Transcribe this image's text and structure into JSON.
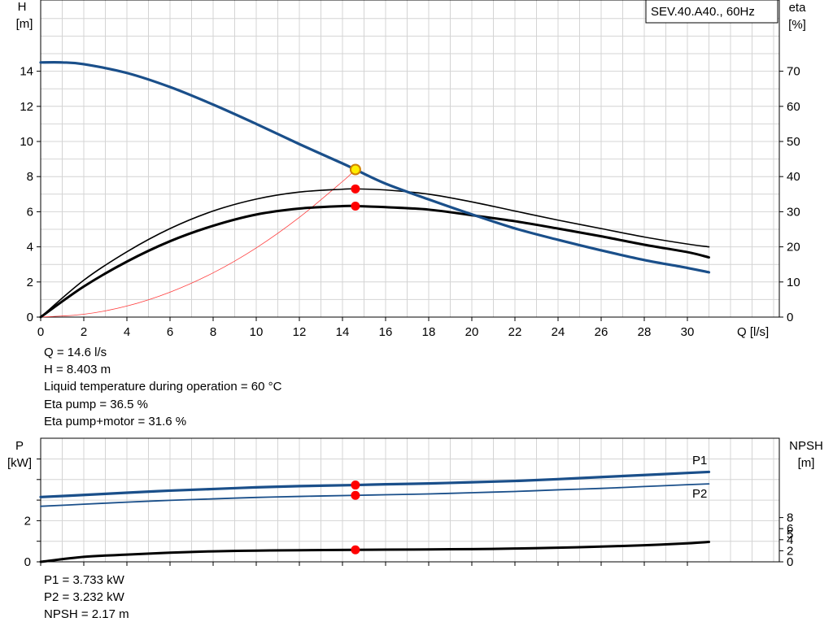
{
  "colors": {
    "head_curve": "#1a4f8a",
    "power_curve": "#1a4f8a",
    "eta_curve": "#000000",
    "system_curve": "#ff3b3b",
    "duty_marker": "#ff0000",
    "duty_highlight_fill": "#ffee00",
    "duty_highlight_stroke": "#d08000",
    "grid": "#d4d4d4"
  },
  "legend_box": "SEV.40.A40., 60Hz",
  "chart_data": [
    {
      "type": "line",
      "name": "performance",
      "xlabel": "Q [l/s]",
      "ylabel": [
        "H",
        "[m]"
      ],
      "y2label": [
        "eta",
        "[%]"
      ],
      "xlim": [
        0,
        34
      ],
      "ylim": [
        0,
        17
      ],
      "y2lim": [
        0,
        85
      ],
      "xticks": [
        0,
        2,
        4,
        6,
        8,
        10,
        12,
        14,
        16,
        18,
        20,
        22,
        24,
        26,
        28,
        30
      ],
      "yticks": [
        0,
        2,
        4,
        6,
        8,
        10,
        12,
        14
      ],
      "y2ticks": [
        0,
        10,
        20,
        30,
        40,
        50,
        60,
        70
      ],
      "grid": true,
      "series": [
        {
          "role": "H",
          "axis": "y",
          "x": [
            0,
            1,
            2,
            4,
            6,
            8,
            10,
            12,
            14,
            14.6,
            16,
            18,
            20,
            22,
            24,
            26,
            28,
            30,
            31
          ],
          "y": [
            14.5,
            14.5,
            14.4,
            13.9,
            13.1,
            12.1,
            11.0,
            9.85,
            8.75,
            8.403,
            7.6,
            6.7,
            5.85,
            5.05,
            4.4,
            3.8,
            3.25,
            2.8,
            2.55
          ]
        },
        {
          "role": "eta_pump",
          "axis": "y2",
          "x": [
            0,
            2,
            4,
            6,
            8,
            10,
            12,
            14,
            14.6,
            16,
            18,
            20,
            22,
            24,
            26,
            28,
            30,
            31
          ],
          "y": [
            0,
            10.5,
            18.6,
            25.2,
            30.2,
            33.6,
            35.6,
            36.4,
            36.5,
            36.2,
            35.0,
            32.8,
            30.2,
            27.6,
            25.2,
            22.8,
            20.8,
            20.0
          ]
        },
        {
          "role": "eta_pump_motor",
          "axis": "y2",
          "x": [
            0,
            2,
            4,
            6,
            8,
            10,
            12,
            14,
            14.6,
            16,
            18,
            20,
            22,
            24,
            26,
            28,
            30,
            31
          ],
          "y": [
            0,
            8.7,
            15.8,
            21.6,
            26.0,
            29.2,
            30.9,
            31.6,
            31.6,
            31.3,
            30.6,
            29.0,
            27.3,
            25.2,
            23.0,
            20.6,
            18.5,
            17.0
          ]
        },
        {
          "role": "system_curve",
          "axis": "y",
          "x": [
            0,
            2,
            4,
            6,
            8,
            10,
            12,
            14,
            14.6
          ],
          "y": [
            0,
            0.16,
            0.63,
            1.42,
            2.52,
            3.94,
            5.68,
            7.72,
            8.403
          ]
        }
      ],
      "duty_points": [
        {
          "x": 14.6,
          "y": 8.403,
          "axis": "y",
          "highlight": true
        },
        {
          "x": 14.6,
          "y": 36.5,
          "axis": "y2"
        },
        {
          "x": 14.6,
          "y": 31.6,
          "axis": "y2"
        }
      ]
    },
    {
      "type": "line",
      "name": "power",
      "ylabel": [
        "P",
        "[kW]"
      ],
      "y2label": [
        "NPSH",
        "[m]"
      ],
      "xlim": [
        0,
        34
      ],
      "ylim": [
        0,
        5.5
      ],
      "y2lim": [
        0,
        20.5
      ],
      "yticks": [
        0,
        2
      ],
      "y2ticks": [
        0,
        2,
        4,
        6,
        8
      ],
      "grid": true,
      "series": [
        {
          "name": "P1",
          "axis": "y",
          "x": [
            0,
            2,
            4,
            6,
            8,
            10,
            12,
            14.6,
            16,
            18,
            20,
            22,
            24,
            26,
            28,
            30,
            31
          ],
          "y": [
            3.15,
            3.25,
            3.36,
            3.46,
            3.54,
            3.62,
            3.68,
            3.733,
            3.77,
            3.81,
            3.87,
            3.93,
            4.02,
            4.12,
            4.22,
            4.32,
            4.37
          ]
        },
        {
          "name": "P2",
          "axis": "y",
          "x": [
            0,
            2,
            4,
            6,
            8,
            10,
            12,
            14.6,
            16,
            18,
            20,
            22,
            24,
            26,
            28,
            30,
            31
          ],
          "y": [
            2.7,
            2.8,
            2.9,
            2.99,
            3.06,
            3.13,
            3.18,
            3.232,
            3.26,
            3.3,
            3.36,
            3.42,
            3.5,
            3.57,
            3.66,
            3.75,
            3.79
          ]
        },
        {
          "role": "NPSH",
          "axis": "y2",
          "x": [
            0,
            2,
            4,
            6,
            8,
            10,
            12,
            14.6,
            16,
            18,
            20,
            22,
            24,
            26,
            28,
            30,
            31
          ],
          "y": [
            0,
            0.9,
            1.3,
            1.65,
            1.9,
            2.03,
            2.1,
            2.17,
            2.2,
            2.25,
            2.3,
            2.4,
            2.55,
            2.75,
            3.0,
            3.35,
            3.6
          ]
        }
      ],
      "duty_points": [
        {
          "x": 14.6,
          "y": 3.733,
          "axis": "y"
        },
        {
          "x": 14.6,
          "y": 3.232,
          "axis": "y"
        },
        {
          "x": 14.6,
          "y": 2.17,
          "axis": "y2"
        }
      ]
    }
  ],
  "info_top": [
    "Q = 14.6 l/s",
    "H = 8.403 m",
    "Liquid temperature during operation = 60 °C",
    "Eta pump = 36.5 %",
    "Eta pump+motor = 31.6 %"
  ],
  "info_bottom": [
    "P1 = 3.733 kW",
    "P2 = 3.232 kW",
    "NPSH = 2.17 m"
  ]
}
